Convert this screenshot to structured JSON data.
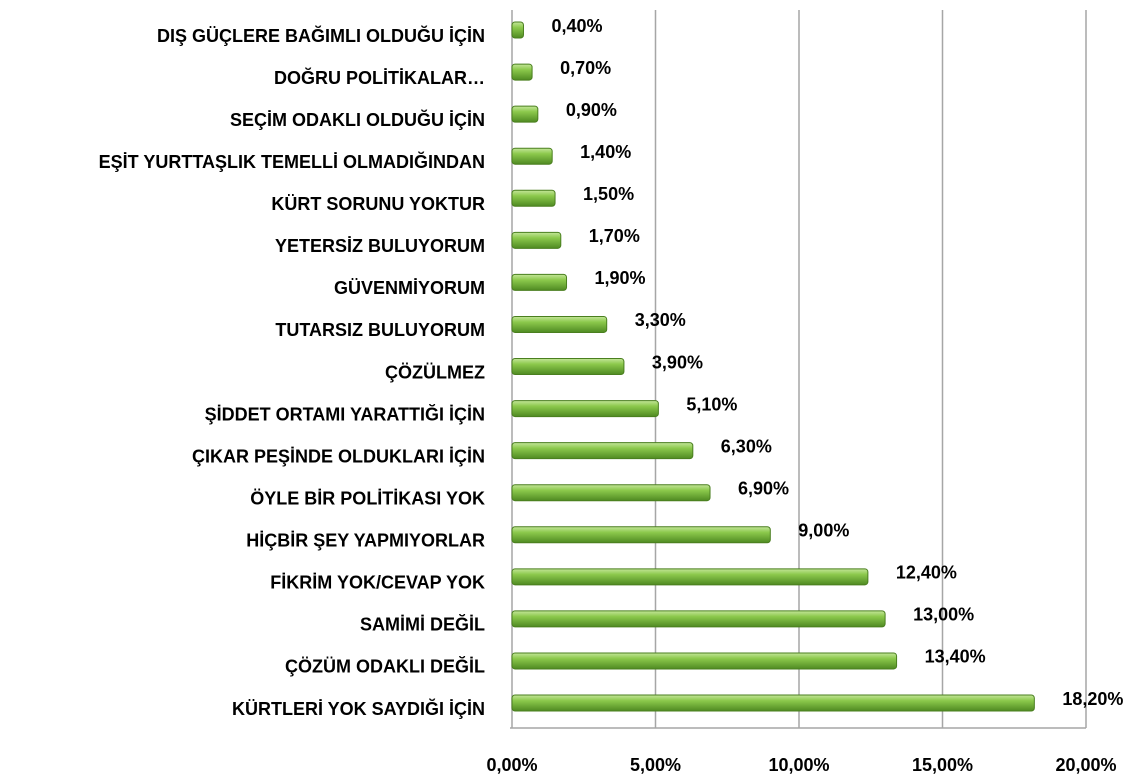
{
  "chart_data": {
    "type": "hbar",
    "categories": [
      "DIŞ GÜÇLERE BAĞIMLI OLDUĞU İÇİN",
      "DOĞRU POLİTİKALAR…",
      "SEÇİM ODAKLI OLDUĞU İÇİN",
      "EŞİT YURTTAŞLIK TEMELLİ OLMADIĞINDAN",
      "KÜRT SORUNU YOKTUR",
      "YETERSİZ BULUYORUM",
      "GÜVENMİYORUM",
      "TUTARSIZ BULUYORUM",
      "ÇÖZÜLMEZ",
      "ŞİDDET ORTAMI YARATTIĞI İÇİN",
      "ÇIKAR PEŞİNDE OLDUKLARI İÇİN",
      "ÖYLE BİR POLİTİKASI YOK",
      "HİÇBİR ŞEY YAPMIYORLAR",
      "FİKRİM YOK/CEVAP YOK",
      "SAMİMİ DEĞİL",
      "ÇÖZÜM ODAKLI DEĞİL",
      "KÜRTLERİ YOK SAYDIĞI İÇİN"
    ],
    "values": [
      0.4,
      0.7,
      0.9,
      1.4,
      1.5,
      1.7,
      1.9,
      3.3,
      3.9,
      5.1,
      6.3,
      6.9,
      9.0,
      12.4,
      13.0,
      13.4,
      18.2
    ],
    "value_labels": [
      "0,40%",
      "0,70%",
      "0,90%",
      "1,40%",
      "1,50%",
      "1,70%",
      "1,90%",
      "3,30%",
      "3,90%",
      "5,10%",
      "6,30%",
      "6,90%",
      "9,00%",
      "12,40%",
      "13,00%",
      "13,40%",
      "18,20%"
    ],
    "color": "#76b531",
    "xlim": [
      0,
      20
    ],
    "xticks": [
      {
        "value": 0,
        "label": "0,00%"
      },
      {
        "value": 5,
        "label": "5,00%"
      },
      {
        "value": 10,
        "label": "10,00%"
      },
      {
        "value": 15,
        "label": "15,00%"
      },
      {
        "value": 20,
        "label": "20,00%"
      }
    ],
    "grid": true
  }
}
